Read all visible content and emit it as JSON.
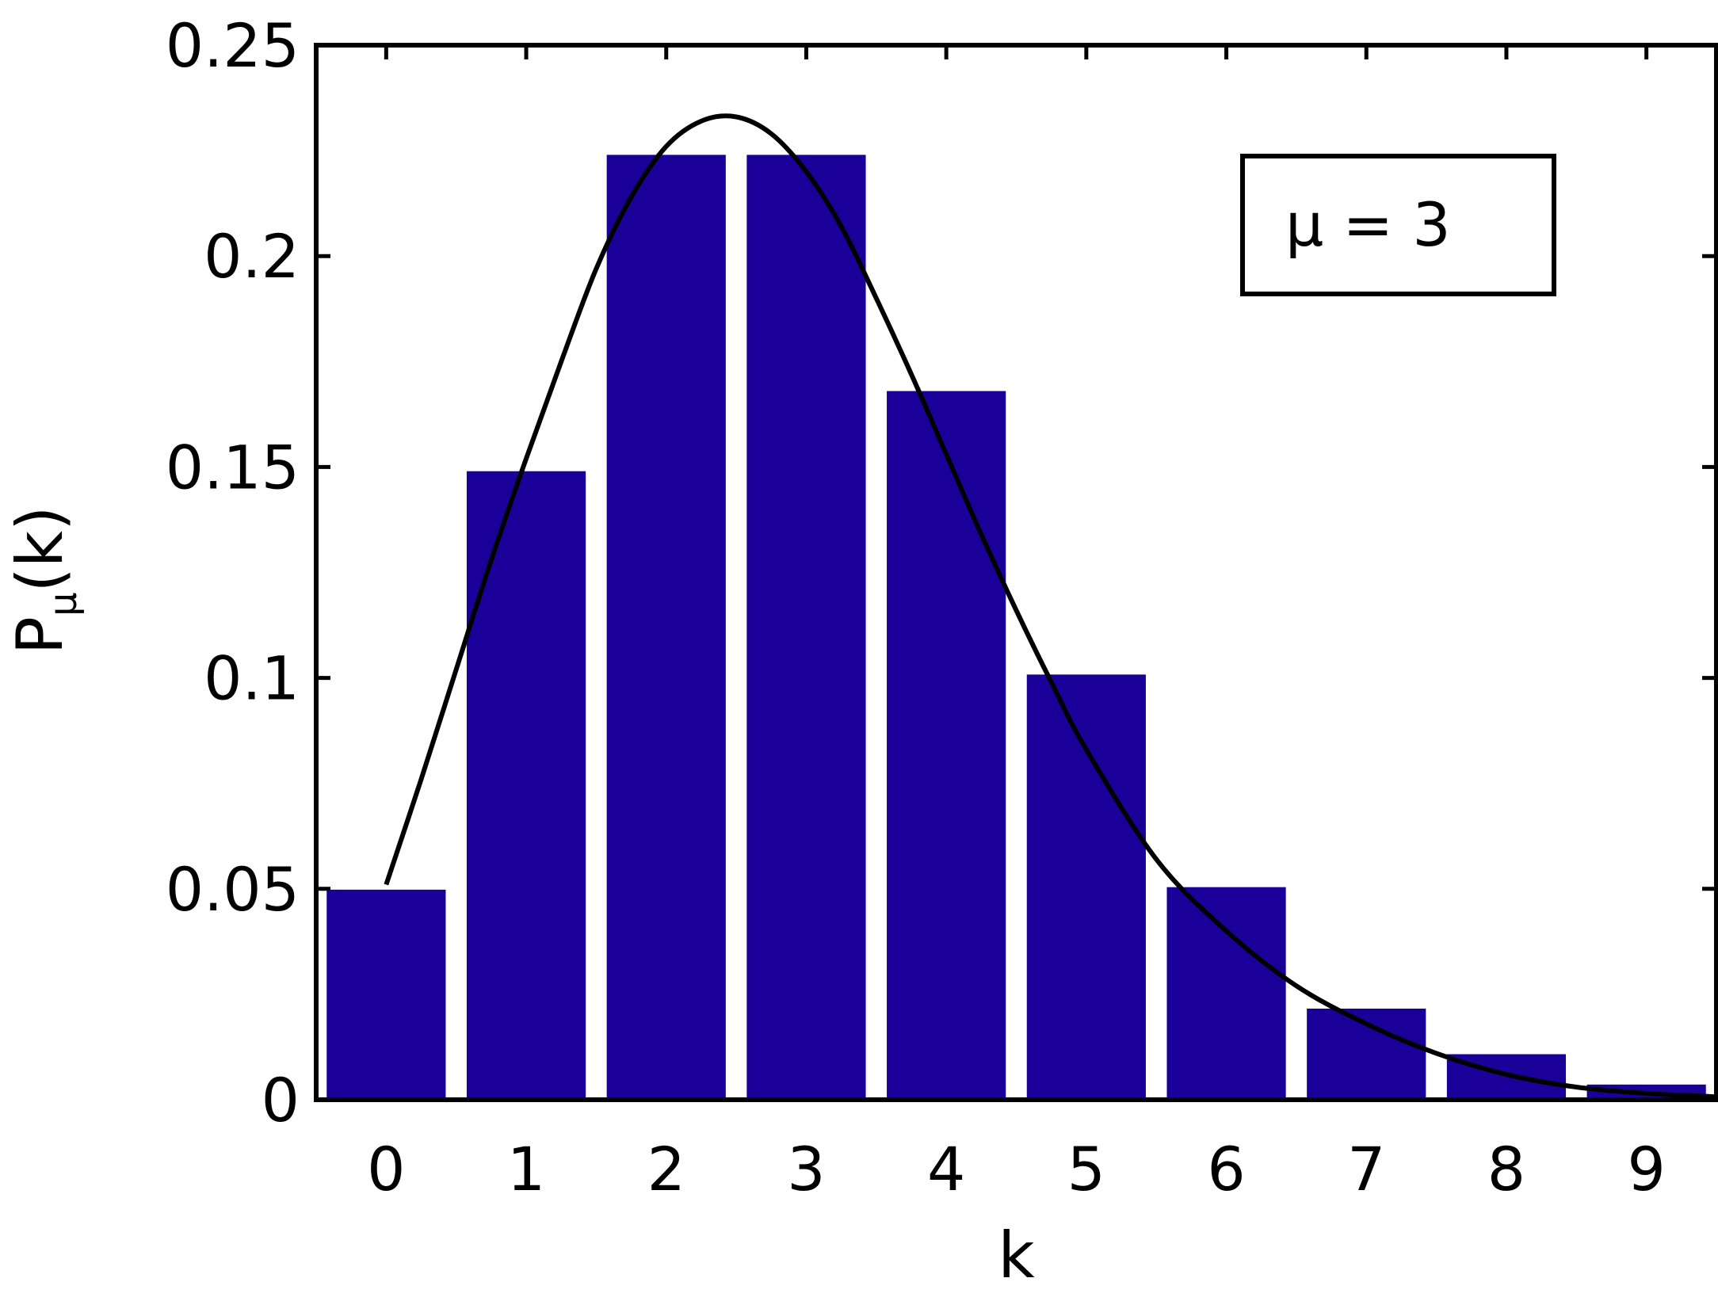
{
  "chart_data": {
    "type": "bar",
    "categories": [
      "0",
      "1",
      "2",
      "3",
      "4",
      "5",
      "6",
      "7",
      "8",
      "9"
    ],
    "x": [
      0,
      1,
      2,
      3,
      4,
      5,
      6,
      7,
      8,
      9
    ],
    "values": [
      0.0498,
      0.149,
      0.224,
      0.224,
      0.168,
      0.1008,
      0.0504,
      0.0216,
      0.0108,
      0.0036
    ],
    "bar_color": "#1a0099",
    "curve": {
      "type": "line",
      "color": "#000000",
      "x": [
        0,
        0.25,
        0.5,
        0.75,
        1,
        1.25,
        1.5,
        1.75,
        2,
        2.25,
        2.5,
        2.75,
        3,
        3.25,
        3.5,
        3.75,
        4,
        4.25,
        4.5,
        4.75,
        5,
        5.5,
        6,
        6.5,
        7,
        7.5,
        8,
        8.5,
        9,
        9.5
      ],
      "y": [
        0.051,
        0.076,
        0.102,
        0.128,
        0.152,
        0.175,
        0.197,
        0.214,
        0.226,
        0.232,
        0.233,
        0.229,
        0.22,
        0.207,
        0.19,
        0.172,
        0.153,
        0.134,
        0.116,
        0.099,
        0.083,
        0.057,
        0.04,
        0.027,
        0.018,
        0.011,
        0.006,
        0.003,
        0.0015,
        0.0007
      ]
    },
    "xlabel": "k",
    "ylabel": "P",
    "ylabel_sub": "μ",
    "ylabel_suffix": "(k)",
    "yticks": [
      "0",
      "0.05",
      "0.1",
      "0.15",
      "0.2",
      "0.25"
    ],
    "ytick_values": [
      0,
      0.05,
      0.1,
      0.15,
      0.2,
      0.25
    ],
    "ylim": [
      0,
      0.25
    ],
    "xlim": [
      -0.5,
      9.5
    ],
    "grid": false,
    "legend": {
      "text": "μ = 3",
      "placement": "top-right"
    }
  }
}
